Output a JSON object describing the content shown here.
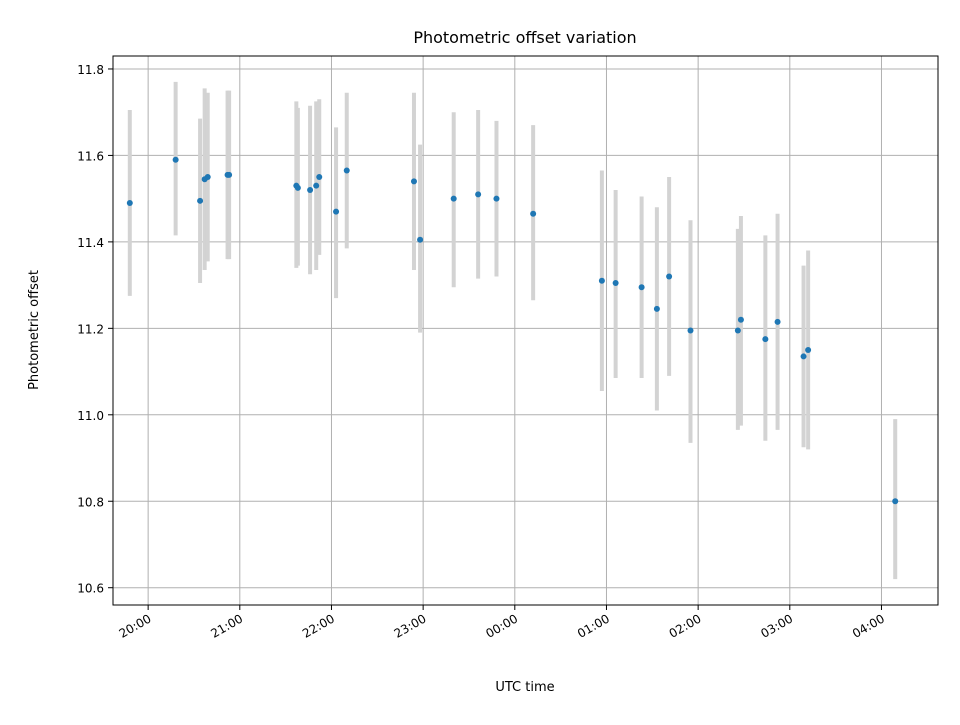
{
  "chart_data": {
    "type": "scatter",
    "title": "Photometric offset variation",
    "xlabel": "UTC time",
    "ylabel": "Photometric offset",
    "x_unit": "UTC time (HH:MM, crossing midnight)",
    "xlim": [
      "19:37",
      "04:37"
    ],
    "ylim": [
      10.56,
      11.83
    ],
    "grid": true,
    "x_ticks": [
      "20:00",
      "21:00",
      "22:00",
      "23:00",
      "00:00",
      "01:00",
      "02:00",
      "03:00",
      "04:00"
    ],
    "y_ticks": [
      "10.6",
      "10.8",
      "11.0",
      "11.2",
      "11.4",
      "11.6",
      "11.8"
    ],
    "colors": {
      "points": "#1f77b4",
      "errorbars": "#d3d3d3",
      "grid": "#b0b0b0"
    },
    "points": [
      {
        "x": "19:48",
        "y": 11.49,
        "ylow": 11.275,
        "yhigh": 11.705
      },
      {
        "x": "20:18",
        "y": 11.59,
        "ylow": 11.415,
        "yhigh": 11.77
      },
      {
        "x": "20:34",
        "y": 11.495,
        "ylow": 11.305,
        "yhigh": 11.685
      },
      {
        "x": "20:37",
        "y": 11.545,
        "ylow": 11.335,
        "yhigh": 11.755
      },
      {
        "x": "20:39",
        "y": 11.55,
        "ylow": 11.355,
        "yhigh": 11.745
      },
      {
        "x": "20:52",
        "y": 11.555,
        "ylow": 11.36,
        "yhigh": 11.75
      },
      {
        "x": "20:53",
        "y": 11.555,
        "ylow": 11.36,
        "yhigh": 11.75
      },
      {
        "x": "21:37",
        "y": 11.53,
        "ylow": 11.34,
        "yhigh": 11.725
      },
      {
        "x": "21:38",
        "y": 11.525,
        "ylow": 11.345,
        "yhigh": 11.71
      },
      {
        "x": "21:46",
        "y": 11.52,
        "ylow": 11.325,
        "yhigh": 11.715
      },
      {
        "x": "21:50",
        "y": 11.53,
        "ylow": 11.335,
        "yhigh": 11.725
      },
      {
        "x": "21:52",
        "y": 11.55,
        "ylow": 11.37,
        "yhigh": 11.73
      },
      {
        "x": "22:03",
        "y": 11.47,
        "ylow": 11.27,
        "yhigh": 11.665
      },
      {
        "x": "22:10",
        "y": 11.565,
        "ylow": 11.385,
        "yhigh": 11.745
      },
      {
        "x": "22:54",
        "y": 11.54,
        "ylow": 11.335,
        "yhigh": 11.745
      },
      {
        "x": "22:58",
        "y": 11.405,
        "ylow": 11.19,
        "yhigh": 11.625
      },
      {
        "x": "23:20",
        "y": 11.5,
        "ylow": 11.295,
        "yhigh": 11.7
      },
      {
        "x": "23:36",
        "y": 11.51,
        "ylow": 11.315,
        "yhigh": 11.705
      },
      {
        "x": "23:48",
        "y": 11.5,
        "ylow": 11.32,
        "yhigh": 11.68
      },
      {
        "x": "00:12",
        "y": 11.465,
        "ylow": 11.265,
        "yhigh": 11.67
      },
      {
        "x": "00:57",
        "y": 11.31,
        "ylow": 11.055,
        "yhigh": 11.565
      },
      {
        "x": "01:06",
        "y": 11.305,
        "ylow": 11.085,
        "yhigh": 11.52
      },
      {
        "x": "01:23",
        "y": 11.295,
        "ylow": 11.085,
        "yhigh": 11.505
      },
      {
        "x": "01:33",
        "y": 11.245,
        "ylow": 11.01,
        "yhigh": 11.48
      },
      {
        "x": "01:41",
        "y": 11.32,
        "ylow": 11.09,
        "yhigh": 11.55
      },
      {
        "x": "01:55",
        "y": 11.195,
        "ylow": 10.935,
        "yhigh": 11.45
      },
      {
        "x": "02:26",
        "y": 11.195,
        "ylow": 10.965,
        "yhigh": 11.43
      },
      {
        "x": "02:28",
        "y": 11.22,
        "ylow": 10.975,
        "yhigh": 11.46
      },
      {
        "x": "02:44",
        "y": 11.175,
        "ylow": 10.94,
        "yhigh": 11.415
      },
      {
        "x": "02:52",
        "y": 11.215,
        "ylow": 10.965,
        "yhigh": 11.465
      },
      {
        "x": "03:09",
        "y": 11.135,
        "ylow": 10.925,
        "yhigh": 11.345
      },
      {
        "x": "03:12",
        "y": 11.15,
        "ylow": 10.92,
        "yhigh": 11.38
      },
      {
        "x": "04:09",
        "y": 10.8,
        "ylow": 10.62,
        "yhigh": 10.99
      }
    ]
  }
}
